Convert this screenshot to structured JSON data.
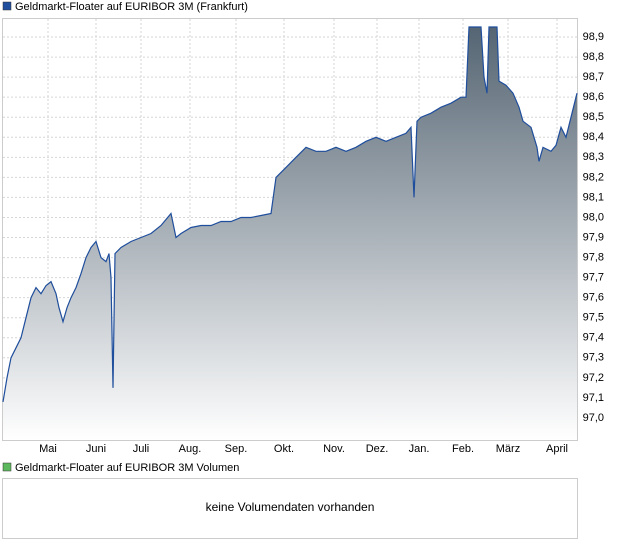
{
  "chart_data": {
    "type": "area",
    "series": [
      {
        "name": "Geldmarkt-Floater auf EURIBOR 3M (Frankfurt)",
        "color": "#1f4e9c",
        "values": [
          97.08,
          97.2,
          97.3,
          97.35,
          97.4,
          97.5,
          97.6,
          97.65,
          97.62,
          97.66,
          97.68,
          97.62,
          97.55,
          97.48,
          97.55,
          97.6,
          97.65,
          97.72,
          97.8,
          97.85,
          97.88,
          97.8,
          97.78,
          97.82,
          97.7,
          97.15,
          97.82,
          97.85,
          97.88,
          97.9,
          97.92,
          97.96,
          98.02,
          97.9,
          97.92,
          97.95,
          97.96,
          97.96,
          97.98,
          97.98,
          98.0,
          98.0,
          98.01,
          98.02,
          98.2,
          98.25,
          98.3,
          98.35,
          98.33,
          98.33,
          98.35,
          98.33,
          98.35,
          98.38,
          98.4,
          98.38,
          98.4,
          98.42,
          98.45,
          98.1,
          98.48,
          98.5,
          98.52,
          98.55,
          98.57,
          98.6,
          98.6,
          98.95,
          98.95,
          98.7,
          98.62,
          98.95,
          98.95,
          98.68,
          98.66,
          98.62,
          98.55,
          98.48,
          98.45,
          98.35,
          98.28,
          98.35,
          98.33,
          98.36,
          98.45,
          98.4,
          98.5,
          98.62
        ]
      }
    ],
    "x": [
      2,
      6,
      10,
      15,
      20,
      25,
      30,
      35,
      40,
      45,
      50,
      55,
      58,
      62,
      66,
      70,
      75,
      80,
      85,
      90,
      95,
      100,
      105,
      108,
      110,
      112,
      114,
      120,
      130,
      140,
      150,
      160,
      170,
      175,
      180,
      190,
      200,
      210,
      220,
      230,
      240,
      250,
      260,
      270,
      275,
      285,
      295,
      305,
      315,
      325,
      335,
      345,
      355,
      365,
      375,
      385,
      395,
      405,
      410,
      413,
      416,
      420,
      430,
      440,
      450,
      460,
      465,
      468,
      480,
      483,
      486,
      488,
      496,
      498,
      505,
      512,
      518,
      522,
      530,
      536,
      538,
      542,
      550,
      555,
      560,
      565,
      570,
      576
    ],
    "xlim": [
      2,
      576
    ],
    "xticks": [
      {
        "value": 47,
        "label": "Mai"
      },
      {
        "value": 95,
        "label": "Juni"
      },
      {
        "value": 140,
        "label": "Juli"
      },
      {
        "value": 189,
        "label": "Aug."
      },
      {
        "value": 235,
        "label": "Sep."
      },
      {
        "value": 283,
        "label": "Okt."
      },
      {
        "value": 333,
        "label": "Nov."
      },
      {
        "value": 376,
        "label": "Dez."
      },
      {
        "value": 418,
        "label": "Jan."
      },
      {
        "value": 462,
        "label": "Feb."
      },
      {
        "value": 507,
        "label": "März"
      },
      {
        "value": 556,
        "label": "April"
      }
    ],
    "ylim": [
      96.89,
      98.99
    ],
    "yticks": [
      {
        "value": 97.0,
        "label": "97,0"
      },
      {
        "value": 97.1,
        "label": "97,1"
      },
      {
        "value": 97.2,
        "label": "97,2"
      },
      {
        "value": 97.3,
        "label": "97,3"
      },
      {
        "value": 97.4,
        "label": "97,4"
      },
      {
        "value": 97.5,
        "label": "97,5"
      },
      {
        "value": 97.6,
        "label": "97,6"
      },
      {
        "value": 97.7,
        "label": "97,7"
      },
      {
        "value": 97.8,
        "label": "97,8"
      },
      {
        "value": 97.9,
        "label": "97,9"
      },
      {
        "value": 98.0,
        "label": "98,0"
      },
      {
        "value": 98.1,
        "label": "98,1"
      },
      {
        "value": 98.2,
        "label": "98,2"
      },
      {
        "value": 98.3,
        "label": "98,3"
      },
      {
        "value": 98.4,
        "label": "98,4"
      },
      {
        "value": 98.5,
        "label": "98,5"
      },
      {
        "value": 98.6,
        "label": "98,6"
      },
      {
        "value": 98.7,
        "label": "98,7"
      },
      {
        "value": 98.8,
        "label": "98,8"
      },
      {
        "value": 98.9,
        "label": "98,9"
      }
    ],
    "grid": true
  },
  "volume_panel": {
    "legend": "Geldmarkt-Floater auf EURIBOR 3M Volumen",
    "color": "#5cb85c",
    "message": "keine Volumendaten vorhanden"
  }
}
